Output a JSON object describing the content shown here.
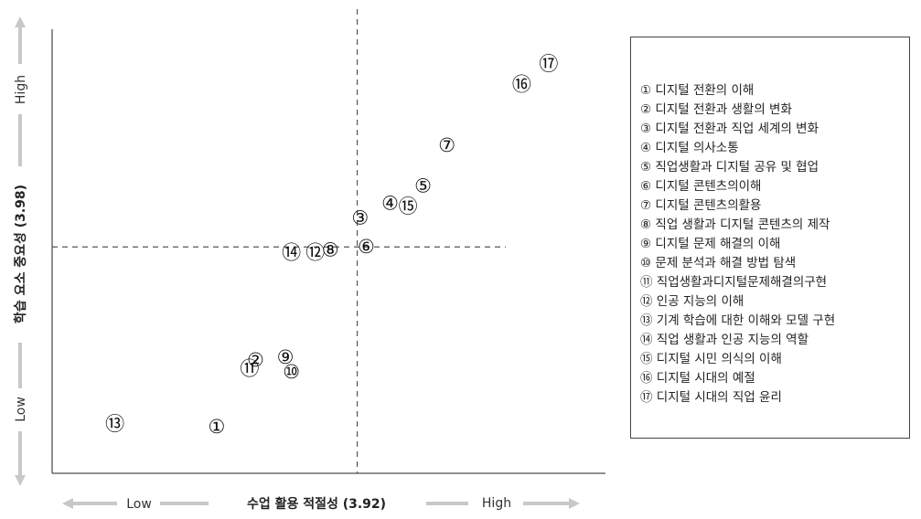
{
  "chart_data": {
    "type": "scatter",
    "title": "",
    "xlabel": "수업 활용 적절성 (3.92)",
    "ylabel": "학습 요소 중요성 (3.98)",
    "x_low_label": "Low",
    "x_high_label": "High",
    "y_low_label": "Low",
    "y_high_label": "High",
    "x_mean": 3.92,
    "y_mean": 3.98,
    "points": [
      {
        "id": 1,
        "marker": "①",
        "x": 3.45,
        "y": 3.36,
        "label": "디지털 전환의 이해"
      },
      {
        "id": 2,
        "marker": "②",
        "x": 3.58,
        "y": 3.59,
        "label": "디지털 전환과 생활의 변화"
      },
      {
        "id": 3,
        "marker": "③",
        "x": 3.93,
        "y": 4.08,
        "label": "디지털 전환과 직업 세계의 변화"
      },
      {
        "id": 4,
        "marker": "④",
        "x": 4.03,
        "y": 4.13,
        "label": "디지털 의사소통"
      },
      {
        "id": 5,
        "marker": "⑤",
        "x": 4.14,
        "y": 4.19,
        "label": "직업생활과 디지털 공유 및 협업"
      },
      {
        "id": 6,
        "marker": "⑥",
        "x": 3.95,
        "y": 3.98,
        "label": "디지털 콘텐츠의이해"
      },
      {
        "id": 7,
        "marker": "⑦",
        "x": 4.22,
        "y": 4.33,
        "label": "디지털 콘텐츠의활용"
      },
      {
        "id": 8,
        "marker": "⑧",
        "x": 3.83,
        "y": 3.97,
        "label": "직업 생활과 디지털 콘텐츠의 제작"
      },
      {
        "id": 9,
        "marker": "⑨",
        "x": 3.68,
        "y": 3.6,
        "label": "디지털 문제 해결의 이해"
      },
      {
        "id": 10,
        "marker": "⑩",
        "x": 3.7,
        "y": 3.55,
        "label": "문제 분석과 해결 방법 탐색"
      },
      {
        "id": 11,
        "marker": "⑪",
        "x": 3.56,
        "y": 3.56,
        "label": "직업생활과디지털문제해결의구현"
      },
      {
        "id": 12,
        "marker": "⑫",
        "x": 3.78,
        "y": 3.96,
        "label": "인공 지능의 이해"
      },
      {
        "id": 13,
        "marker": "⑬",
        "x": 3.11,
        "y": 3.37,
        "label": "기계 학습에 대한 이해와 모델 구현"
      },
      {
        "id": 14,
        "marker": "⑭",
        "x": 3.7,
        "y": 3.96,
        "label": "직업 생활과 인공 지능의 역할"
      },
      {
        "id": 15,
        "marker": "⑮",
        "x": 4.09,
        "y": 4.12,
        "label": "디지털 시민 의식의 이해"
      },
      {
        "id": 16,
        "marker": "⑯",
        "x": 4.47,
        "y": 4.54,
        "label": "디지털 시대의 예절"
      },
      {
        "id": 17,
        "marker": "⑰",
        "x": 4.56,
        "y": 4.61,
        "label": "디지털 시대의 직업 윤리"
      }
    ],
    "xlim": [
      2.9,
      4.75
    ],
    "ylim": [
      3.2,
      4.73
    ],
    "grid": false,
    "legend": "right"
  },
  "legend": {
    "items": [
      "① 디지털 전환의 이해",
      "② 디지털 전환과 생활의 변화",
      "③ 디지털 전환과 직업 세계의 변화",
      "④ 디지털 의사소통",
      "⑤ 직업생활과 디지털 공유 및 협업",
      "⑥ 디지털 콘텐츠의이해",
      "⑦ 디지털 콘텐츠의활용",
      "⑧ 직업 생활과 디지털 콘텐츠의 제작",
      "⑨ 디지털 문제 해결의 이해",
      "⑩ 문제 분석과 해결 방법 탐색",
      "⑪ 직업생활과디지털문제해결의구현",
      "⑫ 인공 지능의 이해",
      "⑬ 기계 학습에 대한 이해와 모델 구현",
      "⑭ 직업 생활과 인공 지능의 역할",
      "⑮ 디지털 시민 의식의 이해",
      "⑯ 디지털 시대의 예절",
      "⑰ 디지털 시대의 직업 윤리"
    ]
  },
  "colors": {
    "axis": "#222222",
    "arrow": "#c8c8c8",
    "marker_text": "#111111"
  }
}
